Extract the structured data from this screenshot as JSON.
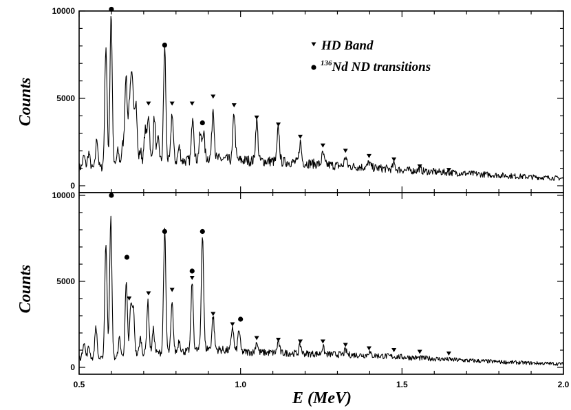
{
  "chart_data": [
    {
      "type": "line",
      "panel": "top",
      "ylabel": "Counts",
      "xlim": [
        0.5,
        2.0
      ],
      "ylim": [
        0,
        10000
      ],
      "y_ticks": [
        {
          "value": 0,
          "label": "0"
        },
        {
          "value": 5000,
          "label": "5000"
        },
        {
          "value": 10000,
          "label": "10000"
        }
      ],
      "legend": {
        "placement": "top-right",
        "entries": [
          {
            "marker": "triangle-down",
            "label": "HD Band"
          },
          {
            "marker": "circle",
            "sup": "136",
            "label": "Nd ND transitions"
          }
        ]
      },
      "baseline": [
        [
          0.5,
          1050
        ],
        [
          0.55,
          1000
        ],
        [
          0.6,
          1100
        ],
        [
          0.65,
          1250
        ],
        [
          0.7,
          1350
        ],
        [
          0.75,
          1350
        ],
        [
          0.8,
          1400
        ],
        [
          0.85,
          1450
        ],
        [
          0.9,
          1600
        ],
        [
          0.95,
          1500
        ],
        [
          1.0,
          1450
        ],
        [
          1.1,
          1400
        ],
        [
          1.2,
          1300
        ],
        [
          1.3,
          1150
        ],
        [
          1.4,
          1050
        ],
        [
          1.5,
          900
        ],
        [
          1.6,
          800
        ],
        [
          1.7,
          700
        ],
        [
          1.8,
          600
        ],
        [
          1.9,
          500
        ],
        [
          2.0,
          420
        ]
      ],
      "peaks": [
        {
          "x": 0.515,
          "y": 1700
        },
        {
          "x": 0.53,
          "y": 1900
        },
        {
          "x": 0.555,
          "y": 2700
        },
        {
          "x": 0.583,
          "y": 8000
        },
        {
          "x": 0.599,
          "y": 9900
        },
        {
          "x": 0.62,
          "y": 2000
        },
        {
          "x": 0.635,
          "y": 2300
        },
        {
          "x": 0.645,
          "y": 6400
        },
        {
          "x": 0.655,
          "y": 4200
        },
        {
          "x": 0.662,
          "y": 5300
        },
        {
          "x": 0.668,
          "y": 4000
        },
        {
          "x": 0.676,
          "y": 4700
        },
        {
          "x": 0.69,
          "y": 2000
        },
        {
          "x": 0.705,
          "y": 3200
        },
        {
          "x": 0.715,
          "y": 4100
        },
        {
          "x": 0.733,
          "y": 3900
        },
        {
          "x": 0.745,
          "y": 2600
        },
        {
          "x": 0.765,
          "y": 7900
        },
        {
          "x": 0.788,
          "y": 4200
        },
        {
          "x": 0.81,
          "y": 2200
        },
        {
          "x": 0.852,
          "y": 4100
        },
        {
          "x": 0.875,
          "y": 2900
        },
        {
          "x": 0.885,
          "y": 3100
        },
        {
          "x": 0.915,
          "y": 4500
        },
        {
          "x": 0.98,
          "y": 4200
        },
        {
          "x": 1.05,
          "y": 3800
        },
        {
          "x": 1.117,
          "y": 3300
        },
        {
          "x": 1.185,
          "y": 2500
        },
        {
          "x": 1.255,
          "y": 1850
        },
        {
          "x": 1.325,
          "y": 1650
        },
        {
          "x": 1.398,
          "y": 1350
        },
        {
          "x": 1.475,
          "y": 1250
        },
        {
          "x": 1.555,
          "y": 1000
        }
      ],
      "hd_band_markers": [
        {
          "x": 0.715,
          "y": 4700
        },
        {
          "x": 0.788,
          "y": 4700
        },
        {
          "x": 0.85,
          "y": 4700
        },
        {
          "x": 0.915,
          "y": 5100
        },
        {
          "x": 0.98,
          "y": 4600
        },
        {
          "x": 1.05,
          "y": 3900
        },
        {
          "x": 1.117,
          "y": 3500
        },
        {
          "x": 1.185,
          "y": 2800
        },
        {
          "x": 1.255,
          "y": 2300
        },
        {
          "x": 1.325,
          "y": 2000
        },
        {
          "x": 1.398,
          "y": 1700
        },
        {
          "x": 1.475,
          "y": 1500
        },
        {
          "x": 1.555,
          "y": 1100
        },
        {
          "x": 1.645,
          "y": 900
        }
      ],
      "nd_markers": [
        {
          "x": 0.6,
          "y": 10100
        },
        {
          "x": 0.765,
          "y": 8050
        },
        {
          "x": 0.882,
          "y": 3600
        }
      ]
    },
    {
      "type": "line",
      "panel": "bottom",
      "xlabel": "E (MeV)",
      "ylabel": "Counts",
      "xlim": [
        0.5,
        2.0
      ],
      "ylim": [
        0,
        10000
      ],
      "x_ticks": [
        {
          "value": 0.5,
          "label": "0.5"
        },
        {
          "value": 1.0,
          "label": "1.0"
        },
        {
          "value": 1.5,
          "label": "1.5"
        },
        {
          "value": 2.0,
          "label": "2.0"
        }
      ],
      "y_ticks": [
        {
          "value": 0,
          "label": "0"
        },
        {
          "value": 5000,
          "label": "5000"
        },
        {
          "value": 10000,
          "label": "10000"
        }
      ],
      "baseline": [
        [
          0.5,
          550
        ],
        [
          0.55,
          500
        ],
        [
          0.6,
          500
        ],
        [
          0.65,
          650
        ],
        [
          0.7,
          800
        ],
        [
          0.75,
          850
        ],
        [
          0.8,
          900
        ],
        [
          0.85,
          950
        ],
        [
          0.9,
          1100
        ],
        [
          0.95,
          1000
        ],
        [
          1.0,
          900
        ],
        [
          1.1,
          850
        ],
        [
          1.2,
          800
        ],
        [
          1.3,
          750
        ],
        [
          1.4,
          700
        ],
        [
          1.5,
          600
        ],
        [
          1.6,
          500
        ],
        [
          1.7,
          400
        ],
        [
          1.8,
          320
        ],
        [
          1.9,
          250
        ],
        [
          2.0,
          200
        ]
      ],
      "peaks": [
        {
          "x": 0.515,
          "y": 1500
        },
        {
          "x": 0.53,
          "y": 1200
        },
        {
          "x": 0.552,
          "y": 2400
        },
        {
          "x": 0.583,
          "y": 7200
        },
        {
          "x": 0.598,
          "y": 8700
        },
        {
          "x": 0.625,
          "y": 1700
        },
        {
          "x": 0.646,
          "y": 4900
        },
        {
          "x": 0.66,
          "y": 3500
        },
        {
          "x": 0.668,
          "y": 3300
        },
        {
          "x": 0.69,
          "y": 1700
        },
        {
          "x": 0.713,
          "y": 3800
        },
        {
          "x": 0.73,
          "y": 2200
        },
        {
          "x": 0.765,
          "y": 7900
        },
        {
          "x": 0.788,
          "y": 3700
        },
        {
          "x": 0.81,
          "y": 1600
        },
        {
          "x": 0.85,
          "y": 5000
        },
        {
          "x": 0.882,
          "y": 7800
        },
        {
          "x": 0.915,
          "y": 3000
        },
        {
          "x": 0.975,
          "y": 2400
        },
        {
          "x": 0.995,
          "y": 2200
        },
        {
          "x": 1.05,
          "y": 1500
        },
        {
          "x": 1.117,
          "y": 1500
        },
        {
          "x": 1.185,
          "y": 1300
        },
        {
          "x": 1.255,
          "y": 1200
        },
        {
          "x": 1.325,
          "y": 1000
        },
        {
          "x": 1.398,
          "y": 900
        }
      ],
      "hd_band_markers": [
        {
          "x": 0.655,
          "y": 4000
        },
        {
          "x": 0.715,
          "y": 4300
        },
        {
          "x": 0.788,
          "y": 4500
        },
        {
          "x": 0.85,
          "y": 5200
        },
        {
          "x": 0.915,
          "y": 3100
        },
        {
          "x": 0.975,
          "y": 2500
        },
        {
          "x": 1.05,
          "y": 1700
        },
        {
          "x": 1.117,
          "y": 1600
        },
        {
          "x": 1.185,
          "y": 1500
        },
        {
          "x": 1.255,
          "y": 1500
        },
        {
          "x": 1.325,
          "y": 1300
        },
        {
          "x": 1.398,
          "y": 1100
        },
        {
          "x": 1.475,
          "y": 1000
        },
        {
          "x": 1.555,
          "y": 900
        },
        {
          "x": 1.645,
          "y": 800
        }
      ],
      "nd_markers": [
        {
          "x": 0.6,
          "y": 10000
        },
        {
          "x": 0.648,
          "y": 6400
        },
        {
          "x": 0.765,
          "y": 7900
        },
        {
          "x": 0.85,
          "y": 5600
        },
        {
          "x": 0.882,
          "y": 7900
        },
        {
          "x": 1.0,
          "y": 2800
        }
      ]
    }
  ]
}
